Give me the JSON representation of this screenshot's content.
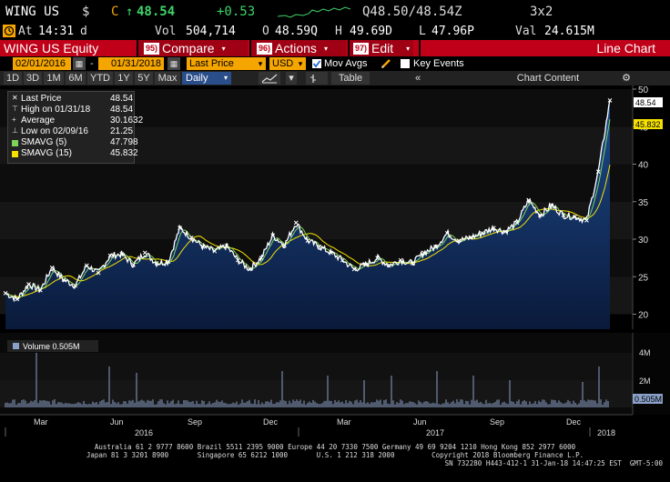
{
  "ticker": {
    "symbol": "WING US",
    "currency": "$",
    "flag": "C",
    "arrow": "↑",
    "last": "48.54",
    "change": "+0.53",
    "quote": "Q48.50/48.54Z",
    "size": "3x2"
  },
  "stats": {
    "at_label": "At",
    "time": "14:31",
    "time_flag": "d",
    "vol_label": "Vol",
    "vol": "504,714",
    "open_label": "O",
    "open": "48.59Q",
    "high_label": "H",
    "high": "49.69D",
    "low_label": "L",
    "low": "47.96P",
    "val_label": "Val",
    "val": "24.615M"
  },
  "function_bar": {
    "security": "WING US Equity",
    "compare_num": "95)",
    "compare": "Compare",
    "actions_num": "96)",
    "actions": "Actions",
    "edit_num": "97)",
    "edit": "Edit",
    "chart_type": "Line Chart"
  },
  "controls": {
    "start_date": "02/01/2016",
    "end_date": "01/31/2018",
    "field": "Last Price",
    "currency": "USD",
    "mov_avgs": "Mov Avgs",
    "key_events": "Key Events"
  },
  "periods": [
    "1D",
    "3D",
    "1M",
    "6M",
    "YTD",
    "1Y",
    "5Y",
    "Max"
  ],
  "frequency": "Daily",
  "table_label": "Table",
  "chart_content_label": "Chart Content",
  "legend": {
    "last_price": {
      "name": "Last Price",
      "value": "48.54"
    },
    "high": {
      "name": "High on 01/31/18",
      "value": "48.54"
    },
    "average": {
      "name": "Average",
      "value": "30.1632"
    },
    "low": {
      "name": "Low on 02/09/16",
      "value": "21.25"
    },
    "smavg5": {
      "name": "SMAVG (5)",
      "value": "47.798"
    },
    "smavg15": {
      "name": "SMAVG (15)",
      "value": "45.832"
    }
  },
  "volume_label": "Volume 0.505M",
  "colors": {
    "accent_red": "#c00018",
    "amber": "#f5a500",
    "sma5": "#7cd45a",
    "sma15": "#f5e100",
    "area_top": "#1a3a70",
    "volume": "#8aa0c8"
  },
  "chart_data": {
    "type": "line",
    "x_axis_months": [
      "Mar",
      "Jun",
      "Sep",
      "Dec",
      "Mar",
      "Jun",
      "Sep",
      "Dec"
    ],
    "x_axis_years": [
      "2016",
      "2017",
      "2018"
    ],
    "y_ticks": [
      20,
      25,
      30,
      35,
      40,
      45,
      50
    ],
    "ylim": [
      18,
      50
    ],
    "last_value_label": "48.54",
    "sma15_value_label": "45.832",
    "volume_ticks": [
      "4M",
      "2M"
    ],
    "volume_last_label": "0.505M",
    "x": [
      0,
      2,
      4,
      6,
      8,
      10,
      12,
      14,
      16,
      18,
      20,
      22,
      24,
      26,
      28,
      30,
      32,
      34,
      36,
      38,
      40,
      42,
      44,
      46,
      48,
      50,
      52,
      54,
      56,
      58,
      60,
      62,
      64,
      66,
      68,
      70,
      72,
      74,
      76,
      78,
      80,
      82,
      84,
      86,
      88,
      90,
      92,
      94,
      96,
      98,
      100,
      102,
      104
    ],
    "values": [
      22.8,
      22.0,
      24.0,
      23.2,
      26.2,
      24.6,
      23.8,
      26.5,
      25.5,
      27.8,
      28.0,
      26.6,
      28.2,
      26.8,
      27.0,
      31.5,
      30.2,
      29.0,
      28.4,
      29.1,
      27.2,
      26.0,
      27.5,
      30.5,
      29.2,
      32.2,
      29.8,
      29.0,
      28.2,
      27.2,
      26.0,
      26.6,
      27.5,
      26.5,
      27.2,
      26.8,
      28.2,
      29.0,
      30.8,
      29.8,
      30.2,
      30.8,
      31.5,
      31.0,
      32.2,
      35.2,
      33.2,
      34.5,
      33.2,
      33.0,
      32.5,
      39.0,
      48.5
    ]
  }
}
